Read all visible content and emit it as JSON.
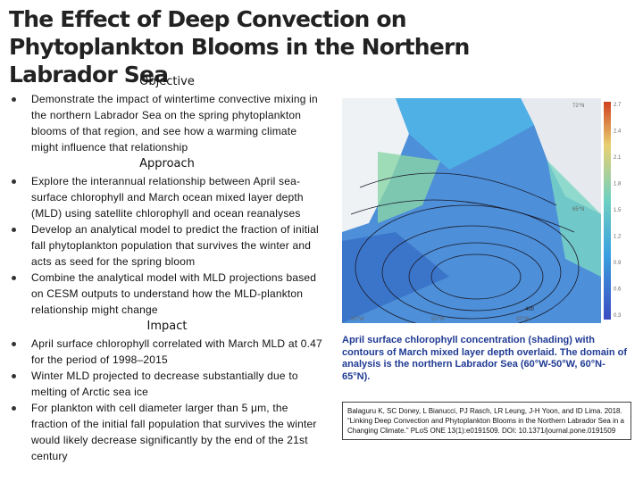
{
  "title": "The Effect of Deep Convection on Phytoplankton Blooms in the Northern Labrador Sea",
  "sections": [
    {
      "heading": "Objective",
      "items": [
        "Demonstrate the impact of wintertime convective mixing in the northern Labrador Sea on the spring phytoplankton blooms of that region, and see how a warming climate might influence that relationship"
      ]
    },
    {
      "heading": "Approach",
      "items": [
        "Explore the interannual relationship between April sea-surface chlorophyll and March ocean mixed layer depth (MLD) using satellite chlorophyll and ocean reanalyses",
        "Develop an analytical model to predict the fraction of initial fall phytoplankton population that survives the winter and acts as seed for the spring bloom",
        "Combine the analytical model with MLD projections based on CESM outputs to understand how the MLD-plankton relationship might change"
      ]
    },
    {
      "heading": "Impact",
      "items": [
        "April surface chlorophyll correlated with March MLD at 0.47 for the period of 1998–2015",
        "Winter MLD projected to decrease substantially due to melting of Arctic sea ice",
        "For plankton with cell diameter larger than 5 μm, the fraction of the initial fall population that survives the winter would likely decrease significantly by the end of the 21st century"
      ]
    }
  ],
  "figure": {
    "lat_labels": [
      "72°N",
      "65°N"
    ],
    "lon_labels": [
      "60°W",
      "55°W",
      "50°W"
    ],
    "colorbar_labels": [
      "2.7",
      "2.4",
      "2.1",
      "1.8",
      "1.5",
      "1.2",
      "0.9",
      "0.6",
      "0.3"
    ],
    "contour_label": "400",
    "caption": "April surface chlorophyll concentration (shading) with contours of March mixed layer depth overlaid. The domain of analysis is the northern Labrador Sea (60°W-50°W, 60°N-65°N)."
  },
  "citation": "Balaguru K, SC Doney, L Bianucci, PJ Rasch, LR Leung, J-H Yoon, and ID Lima. 2018. “Linking Deep Convection and Phytoplankton Blooms in the Northern Labrador Sea in a Changing Climate.” PLoS ONE 13(1):e0191509. DOI: 10.1371/journal.pone.0191509"
}
